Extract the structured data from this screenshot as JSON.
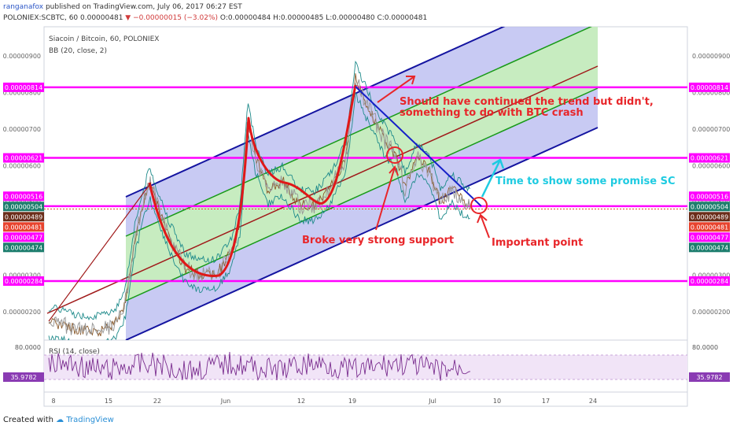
{
  "header": {
    "author": "ranganafox",
    "published": "published on TradingView.com, July 06, 2017 06:27 EST",
    "symbol_line": "POLONIEX:SCBTC, 60 0.00000481",
    "change": "▼ −0.00000015 (−3.02%)",
    "ohlc": "O:0.00000484 H:0.00000485 L:0.00000480 C:0.00000481"
  },
  "footer": {
    "created_with": "Created with",
    "brand": "TradingView"
  },
  "chart_data": {
    "type": "line",
    "title": "Siacoin / Bitcoin, 60, POLONIEX",
    "indicator": "BB (20, close, 2)",
    "rsi_indicator": "RSI (14, close)",
    "x_ticks": [
      "8",
      "15",
      "22",
      "Jun",
      "5",
      "12",
      "19",
      "Jul",
      "10",
      "17",
      "24"
    ],
    "y_ticks": [
      "0.00000900",
      "0.00000800",
      "0.00000700",
      "0.00000600",
      "0.00000500",
      "0.00000400",
      "0.00000300",
      "0.00000200"
    ],
    "ylim": [
      1.1e-06,
      9.4e-06
    ],
    "rsi_ticks": [
      "80.0000",
      "35.9782"
    ],
    "level_lines": [
      {
        "value": "0.00000814",
        "color": "#ff00ff"
      },
      {
        "value": "0.00000621",
        "color": "#ff00ff"
      },
      {
        "value": "0.00000489",
        "color": "#ff00ff"
      },
      {
        "value": "0.00000284",
        "color": "#ff00ff"
      }
    ],
    "price_badges": [
      {
        "value": "0.00000814",
        "color": "#ff00ff"
      },
      {
        "value": "0.00000621",
        "color": "#ff00ff"
      },
      {
        "value": "0.00000516",
        "color": "#ff00ff"
      },
      {
        "value": "0.00000504",
        "color": "#1e7e6e"
      },
      {
        "value": "0.00000489",
        "color": "#6b2d1a"
      },
      {
        "value": "0.00000481",
        "color": "#e8432e"
      },
      {
        "value": "0.00000477",
        "color": "#ff00ff"
      },
      {
        "value": "0.00000474",
        "color": "#1e7e6e"
      },
      {
        "value": "0.00000284",
        "color": "#ff00ff"
      }
    ],
    "rsi_badge": {
      "value": "35.9782",
      "color": "#8a3bb3"
    },
    "annotations": [
      {
        "text": "Should have continued the trend but didn't,",
        "color": "#e8262a"
      },
      {
        "text": "something to do with BTC crash",
        "color": "#e8262a"
      },
      {
        "text": "Time to show some promise SC",
        "color": "#1ecbe1"
      },
      {
        "text": "Broke very strong support",
        "color": "#e8262a"
      },
      {
        "text": "Important point",
        "color": "#e8262a"
      }
    ],
    "colors": {
      "channel_fill": "#b5b8ef",
      "inner_channel_fill": "#c7ecc0",
      "channel_edge": "#1414a0",
      "inner_line": "#189a18",
      "mid_line": "#a01a1a",
      "trendline": "#1520c8",
      "curve": "#e01818",
      "rsi_line": "#7a2d8f"
    },
    "grid": false
  }
}
